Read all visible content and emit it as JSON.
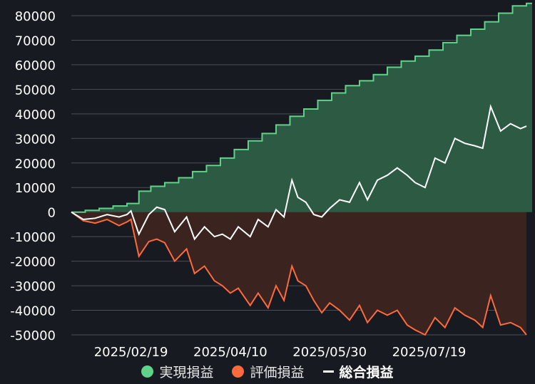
{
  "colors": {
    "background": "#171a20",
    "grid": "#4a4e56",
    "axis_text": "#ffffff",
    "realized_line": "#5fd38a",
    "realized_fill": "#2c5a43",
    "unrealized_line": "#ff6a3d",
    "unrealized_fill": "#3b231f",
    "total_line": "#ffffff"
  },
  "chart_data": {
    "type": "area",
    "y_ticks": [
      "80000",
      "70000",
      "60000",
      "50000",
      "40000",
      "30000",
      "20000",
      "10000",
      "0",
      "-10000",
      "-20000",
      "-30000",
      "-40000",
      "-50000"
    ],
    "y_tick_values": [
      80000,
      70000,
      60000,
      50000,
      40000,
      30000,
      20000,
      10000,
      0,
      -10000,
      -20000,
      -30000,
      -40000,
      -50000
    ],
    "ylim": [
      -50000,
      80000
    ],
    "x_ticks": [
      "2025/02/19",
      "2025/04/10",
      "2025/05/30",
      "2025/07/19"
    ],
    "x_tick_dates": [
      "2025-02-19",
      "2025-04-10",
      "2025-05-30",
      "2025-07-19"
    ],
    "xlim": [
      "2025-01-20",
      "2025-09-06"
    ],
    "grid": true,
    "legend_position": "bottom",
    "series": [
      {
        "name": "実現損益",
        "kind": "area",
        "x": [
          "2025-01-20",
          "2025-01-27",
          "2025-02-03",
          "2025-02-10",
          "2025-02-17",
          "2025-02-23",
          "2025-03-01",
          "2025-03-08",
          "2025-03-15",
          "2025-03-22",
          "2025-03-29",
          "2025-04-05",
          "2025-04-12",
          "2025-04-19",
          "2025-04-26",
          "2025-05-03",
          "2025-05-10",
          "2025-05-17",
          "2025-05-24",
          "2025-05-31",
          "2025-06-07",
          "2025-06-14",
          "2025-06-21",
          "2025-06-28",
          "2025-07-05",
          "2025-07-12",
          "2025-07-19",
          "2025-07-26",
          "2025-08-02",
          "2025-08-09",
          "2025-08-16",
          "2025-08-23",
          "2025-08-30",
          "2025-09-06"
        ],
        "values": [
          0,
          700,
          1500,
          2500,
          3500,
          8500,
          10500,
          12000,
          14000,
          16500,
          19000,
          22000,
          25500,
          29000,
          32000,
          35500,
          39000,
          42000,
          45500,
          48500,
          51500,
          53500,
          56000,
          59000,
          61500,
          63500,
          66000,
          69000,
          72000,
          74500,
          77500,
          81000,
          84000,
          85000
        ]
      },
      {
        "name": "評価損益",
        "kind": "area",
        "x": [
          "2025-01-20",
          "2025-01-26",
          "2025-02-01",
          "2025-02-07",
          "2025-02-13",
          "2025-02-17",
          "2025-02-19",
          "2025-02-23",
          "2025-02-28",
          "2025-03-04",
          "2025-03-08",
          "2025-03-13",
          "2025-03-19",
          "2025-03-23",
          "2025-03-28",
          "2025-04-02",
          "2025-04-06",
          "2025-04-10",
          "2025-04-14",
          "2025-04-20",
          "2025-04-24",
          "2025-04-29",
          "2025-05-03",
          "2025-05-07",
          "2025-05-11",
          "2025-05-14",
          "2025-05-18",
          "2025-05-22",
          "2025-05-26",
          "2025-05-30",
          "2025-06-04",
          "2025-06-09",
          "2025-06-14",
          "2025-06-18",
          "2025-06-23",
          "2025-06-28",
          "2025-07-03",
          "2025-07-08",
          "2025-07-12",
          "2025-07-17",
          "2025-07-22",
          "2025-07-27",
          "2025-08-01",
          "2025-08-06",
          "2025-08-11",
          "2025-08-15",
          "2025-08-19",
          "2025-08-24",
          "2025-08-29",
          "2025-09-03",
          "2025-09-06"
        ],
        "values": [
          0,
          -3500,
          -4500,
          -3000,
          -5500,
          -4000,
          -3000,
          -18000,
          -12000,
          -11000,
          -12500,
          -20000,
          -15000,
          -25000,
          -22000,
          -28000,
          -30000,
          -33000,
          -31000,
          -38000,
          -33000,
          -39000,
          -30000,
          -36000,
          -22000,
          -28000,
          -30000,
          -36000,
          -41000,
          -37000,
          -40000,
          -44000,
          -38000,
          -45000,
          -40000,
          -42000,
          -40000,
          -46000,
          -48000,
          -50000,
          -43000,
          -47000,
          -39000,
          -42000,
          -44000,
          -47000,
          -34000,
          -46000,
          -45000,
          -47000,
          -50000
        ]
      },
      {
        "name": "総合損益",
        "kind": "line",
        "x": [
          "2025-01-20",
          "2025-01-26",
          "2025-02-01",
          "2025-02-07",
          "2025-02-13",
          "2025-02-17",
          "2025-02-19",
          "2025-02-23",
          "2025-02-28",
          "2025-03-04",
          "2025-03-08",
          "2025-03-13",
          "2025-03-19",
          "2025-03-23",
          "2025-03-28",
          "2025-04-02",
          "2025-04-06",
          "2025-04-10",
          "2025-04-14",
          "2025-04-20",
          "2025-04-24",
          "2025-04-29",
          "2025-05-03",
          "2025-05-07",
          "2025-05-11",
          "2025-05-14",
          "2025-05-18",
          "2025-05-22",
          "2025-05-26",
          "2025-05-30",
          "2025-06-04",
          "2025-06-09",
          "2025-06-14",
          "2025-06-18",
          "2025-06-23",
          "2025-06-28",
          "2025-07-03",
          "2025-07-08",
          "2025-07-12",
          "2025-07-17",
          "2025-07-22",
          "2025-07-27",
          "2025-08-01",
          "2025-08-06",
          "2025-08-11",
          "2025-08-15",
          "2025-08-19",
          "2025-08-24",
          "2025-08-29",
          "2025-09-03",
          "2025-09-06"
        ],
        "values": [
          0,
          -3000,
          -2500,
          -1000,
          -2000,
          -1000,
          500,
          -9000,
          -1000,
          2000,
          1000,
          -8000,
          -2000,
          -11000,
          -6000,
          -10000,
          -9000,
          -11000,
          -6000,
          -10000,
          -3000,
          -6000,
          1000,
          -2000,
          13000,
          6000,
          4000,
          -1000,
          -2000,
          1500,
          5000,
          4000,
          12000,
          5000,
          13000,
          15000,
          18000,
          15000,
          12000,
          10000,
          22000,
          20000,
          30000,
          28000,
          27000,
          26000,
          43000,
          33000,
          36000,
          34000,
          35000
        ]
      }
    ]
  },
  "legend": {
    "realized": "実現損益",
    "unrealized": "評価損益",
    "total": "総合損益"
  }
}
